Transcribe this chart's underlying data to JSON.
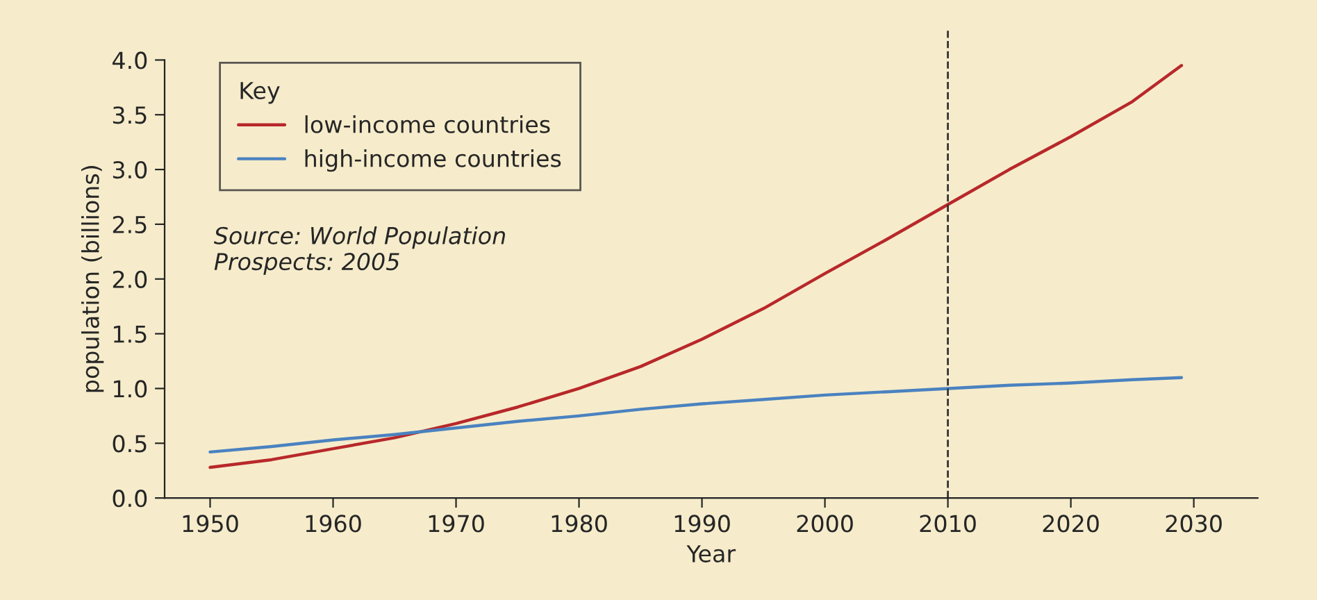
{
  "chart_data": {
    "type": "line",
    "xlabel": "Year",
    "ylabel": "population (billions)",
    "legend_title": "Key",
    "legend": "top left",
    "grid": false,
    "marker": "none",
    "line_style": "solid",
    "x": [
      1950,
      1955,
      1960,
      1965,
      1970,
      1975,
      1980,
      1985,
      1990,
      1995,
      2000,
      2005,
      2010,
      2015,
      2020,
      2025,
      2029
    ],
    "series": [
      {
        "name": "low-income countries",
        "color": "#b8282a",
        "values": [
          0.28,
          0.35,
          0.45,
          0.55,
          0.68,
          0.83,
          1.0,
          1.2,
          1.45,
          1.73,
          2.05,
          2.36,
          2.68,
          3.0,
          3.3,
          3.62,
          3.95
        ]
      },
      {
        "name": "high-income countries",
        "color": "#4a82c0",
        "values": [
          0.42,
          0.47,
          0.53,
          0.58,
          0.64,
          0.7,
          0.75,
          0.81,
          0.86,
          0.9,
          0.94,
          0.97,
          1.0,
          1.03,
          1.05,
          1.08,
          1.1
        ]
      }
    ],
    "xlim": [
      1946.3,
      2035.2
    ],
    "ylim": [
      0,
      4.0
    ],
    "xticks": [
      1950,
      1960,
      1970,
      1980,
      1990,
      2000,
      2010,
      2020,
      2030
    ],
    "yticks": [
      {
        "value": 0,
        "label": "0.0"
      },
      {
        "value": 0.5,
        "label": "0.5"
      },
      {
        "value": 1.0,
        "label": "1.0"
      },
      {
        "value": 1.5,
        "label": "1.5"
      },
      {
        "value": 2.0,
        "label": "2.0"
      },
      {
        "value": 2.5,
        "label": "2.5"
      },
      {
        "value": 3.0,
        "label": "3.0"
      },
      {
        "value": 3.5,
        "label": "3.5"
      },
      {
        "value": 4.0,
        "label": "4.0"
      }
    ],
    "ref_lines": [
      {
        "axis": "x",
        "value": 2010,
        "color": "#333333",
        "line_style": "dashed"
      }
    ],
    "annotations": [
      "Source: World Population\nProspects: 2005"
    ]
  }
}
